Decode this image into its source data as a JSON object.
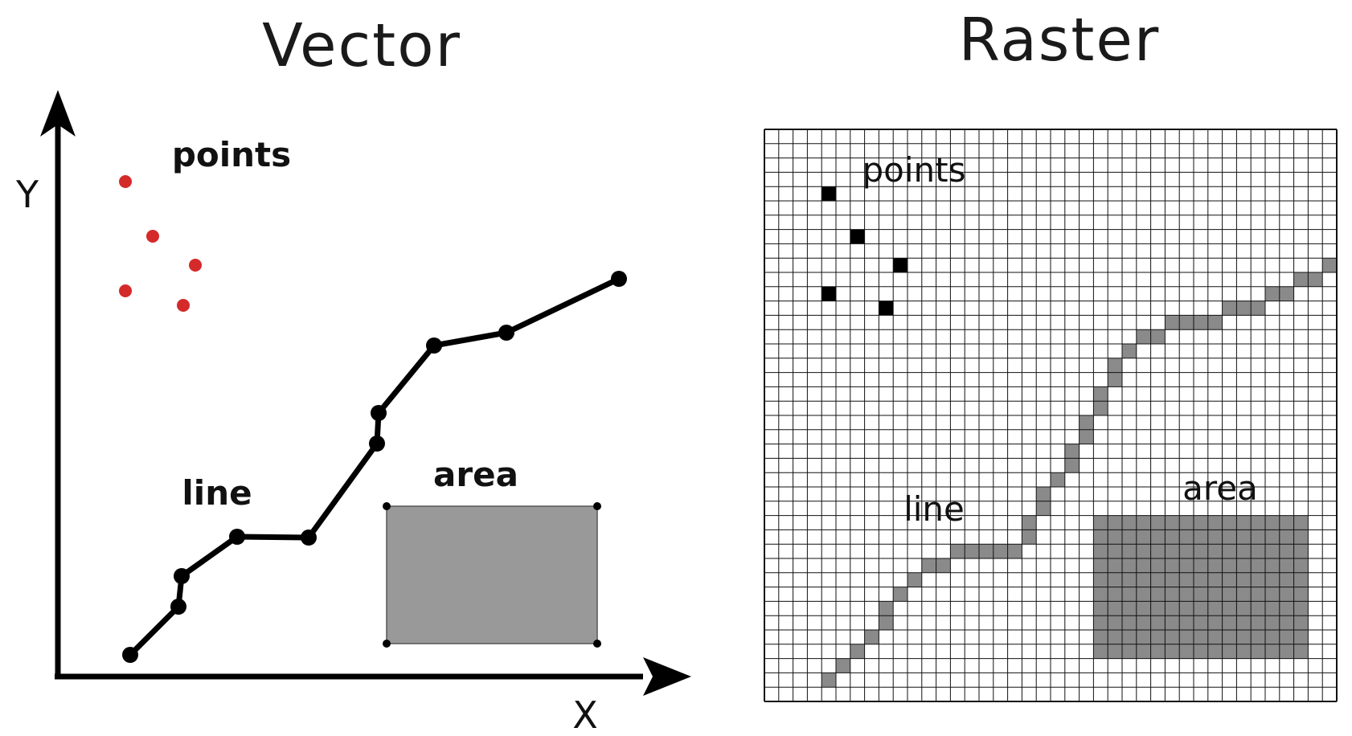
{
  "vector": {
    "title": "Vector",
    "axis_x_label": "X",
    "axis_y_label": "Y",
    "points_label": "points",
    "line_label": "line",
    "area_label": "area"
  },
  "raster": {
    "title": "Raster",
    "points_label": "points",
    "line_label": "line",
    "area_label": "area"
  },
  "colors": {
    "point_fill": "#d42a2a",
    "line_stroke": "#000000",
    "area_fill": "#999999",
    "raster_cell": "#8a8a8a",
    "raster_point": "#000000",
    "grid": "#111111"
  }
}
